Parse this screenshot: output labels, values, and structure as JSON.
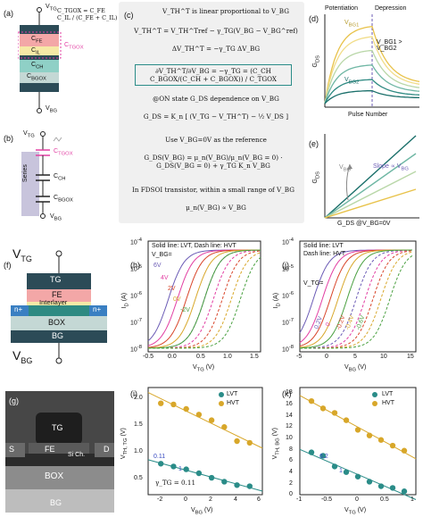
{
  "panels": {
    "a": "(a)",
    "b": "(b)",
    "c": "(c)",
    "d": "(d)",
    "e": "(e)",
    "f": "(f)",
    "g": "(g)",
    "h": "(h)",
    "i": "(i)",
    "j": "(j)",
    "k": "(k)"
  },
  "panel_a": {
    "vtg": "V",
    "vtg_sub": "TG",
    "vbg": "V",
    "vbg_sub": "BG",
    "layers": [
      "C",
      "C",
      "C",
      "C"
    ],
    "layer_subs": [
      "FE",
      "IL",
      "CH",
      "BGOX"
    ],
    "ctgox_label": "C",
    "ctgox_sub": "TGOX",
    "formula": "C_TGOX = C_FE C_IL / (C_FE + C_IL)"
  },
  "panel_b": {
    "vtg": "V",
    "vtg_sub": "TG",
    "vbg": "V",
    "vbg_sub": "BG",
    "series": "Series",
    "caps": [
      "C",
      "C",
      "C"
    ],
    "cap_subs": [
      "TGOX",
      "CH",
      "BGOX"
    ]
  },
  "panel_c": {
    "line1": "V_TH^T is linear proportional to V_BG",
    "eq1": "V_TH^T = V_TH^Tref − γ_TG(V_BG − V_BG^ref)",
    "eq2": "ΔV_TH^T = −γ_TG ΔV_BG",
    "eq3": "∂V_TH^T/∂V_BG = −γ_TG = (C_CH C_BGOX/(C_CH + C_BGOX)) / C_TGOX",
    "line2": "@ON state G_DS dependence on V_BG",
    "eq4": "G_DS = K_n [ (V_TG − V_TH^T) − ½ V_DS ]",
    "line3": "Use V_BG=0V as the reference",
    "eq5": "G_DS(V_BG) = μ_n(V_BG)/μ_n(V_BG = 0) · G_DS(V_BG = 0) + γ_TG K_n V_BG",
    "line4": "In FDSOI transistor, within a small range of V_BG",
    "eq6": "μ_n(V_BG) ∝ V_BG"
  },
  "panel_d": {
    "potentiation": "Potentiation",
    "depression": "Depression",
    "ylabel": "G",
    "ylabel_sub": "DS",
    "xlabel": "Pulse Number",
    "vbg1": "V",
    "vbg1_sub": "BG1",
    "vbg2": "V",
    "vbg2_sub": "BG2",
    "relation": "V_BG1 > V_BG2",
    "colors": [
      "#e8c24a",
      "#f1dd8a",
      "#b9d7a8",
      "#6fb7a4",
      "#2e8a82",
      "#1a6f6a"
    ]
  },
  "panel_e": {
    "ylabel": "G",
    "ylabel_sub": "DS",
    "xlabel": "G_DS @V_BG=0V",
    "vbg": "V",
    "vbg_sub": "BG",
    "slope": "Slope ∝ V",
    "slope_sub": "BG"
  },
  "panel_f": {
    "vtg": "V",
    "vtg_sub": "TG",
    "vbg": "V",
    "vbg_sub": "BG",
    "layers": [
      "TG",
      "FE",
      "Interlayer",
      "n+",
      "n+",
      "BOX",
      "BG"
    ]
  },
  "panel_g": {
    "labels": [
      "TG",
      "FE",
      "Si Ch.",
      "S",
      "D",
      "BOX",
      "BG"
    ]
  },
  "panel_h": {
    "note1": "Solid line: LVT, Dash line: HVT",
    "vbg_label": "V_BG=",
    "curve_labels": [
      "6V",
      "4V",
      "2V",
      "0V",
      "-2V"
    ],
    "xlabel": "V",
    "xlabel_sub": "TG",
    "xunit": " (V)",
    "ylabel": "I",
    "ylabel_sub": "D",
    "yunit": " (A)",
    "xticks": [
      "-0.5",
      "0.0",
      "0.5",
      "1.0",
      "1.5"
    ],
    "yticks": [
      "10",
      "10",
      "10",
      "10",
      "10"
    ],
    "yexps": [
      "-4",
      "-5",
      "-6",
      "-7",
      "-8"
    ]
  },
  "panel_j": {
    "note1": "Solid line: LVT",
    "note2": "Dash line: HVT",
    "vtg_label": "V_TG=",
    "curve_labels": [
      "0.2V",
      "0",
      "-0.2V",
      "-0.4V",
      "-0.6V"
    ],
    "xlabel": "V",
    "xlabel_sub": "BG",
    "xunit": " (V)",
    "ylabel": "I",
    "ylabel_sub": "D",
    "yunit": " (A)",
    "xticks": [
      "-5",
      "0",
      "5",
      "10",
      "15"
    ],
    "yticks": [
      "10",
      "10",
      "10",
      "10",
      "10"
    ],
    "yexps": [
      "-4",
      "-5",
      "-6",
      "-7",
      "-8"
    ]
  },
  "panel_i": {
    "legend": [
      "LVT",
      "HVT"
    ],
    "slope_value": "0.11",
    "slope_one": "1",
    "gamma": "γ_TG = 0.11",
    "xlabel": "V",
    "xlabel_sub": "BG",
    "xunit": " (V)",
    "ylabel": "V",
    "ylabel_sub": "TH, TG",
    "yunit": " (V)",
    "xticks": [
      "-2",
      "0",
      "2",
      "4",
      "6"
    ],
    "yticks": [
      "0.5",
      "1.0",
      "1.5",
      "2.0"
    ],
    "colors": {
      "lvt": "#2a8c88",
      "hvt": "#d8a72a"
    }
  },
  "panel_k": {
    "legend": [
      "LVT",
      "HVT"
    ],
    "slope_value": "6.2",
    "slope_one": "1",
    "xlabel": "V",
    "xlabel_sub": "TG",
    "xunit": " (V)",
    "ylabel": "V",
    "ylabel_sub": "TH, BG",
    "yunit": " (V)",
    "xticks": [
      "-1",
      "-0.5",
      "0",
      "0.5",
      "1"
    ],
    "yticks": [
      "0",
      "2",
      "4",
      "6",
      "8",
      "10",
      "12",
      "14",
      "16",
      "18"
    ]
  },
  "chart_data": [
    {
      "type": "scatter",
      "panel": "i",
      "xlabel": "V_BG (V)",
      "ylabel": "V_TH, TG (V)",
      "xlim": [
        -3,
        6
      ],
      "ylim": [
        0.2,
        2.1
      ],
      "series": [
        {
          "name": "LVT",
          "x": [
            -2,
            -1,
            0,
            1,
            2,
            3,
            4,
            5
          ],
          "y": [
            0.75,
            0.7,
            0.65,
            0.58,
            0.5,
            0.43,
            0.37,
            0.35
          ]
        },
        {
          "name": "HVT",
          "x": [
            -2,
            -1,
            0,
            1,
            2,
            3,
            4,
            5
          ],
          "y": [
            1.82,
            1.8,
            1.72,
            1.62,
            1.52,
            1.4,
            1.15,
            1.12
          ]
        }
      ]
    },
    {
      "type": "scatter",
      "panel": "k",
      "xlabel": "V_TG (V)",
      "ylabel": "V_TH, BG (V)",
      "xlim": [
        -1,
        1
      ],
      "ylim": [
        0,
        19
      ],
      "series": [
        {
          "name": "LVT",
          "x": [
            -0.8,
            -0.6,
            -0.4,
            -0.2,
            0,
            0.2,
            0.4,
            0.6,
            0.8
          ],
          "y": [
            7.5,
            6.9,
            5.0,
            4.0,
            3.2,
            2.3,
            1.5,
            1.2,
            0.6
          ]
        },
        {
          "name": "HVT",
          "x": [
            -0.8,
            -0.6,
            -0.4,
            -0.2,
            0,
            0.2,
            0.4,
            0.6,
            0.8
          ],
          "y": [
            16.6,
            15.3,
            14.5,
            13.2,
            11.5,
            10.5,
            9.7,
            8.7,
            7.8
          ]
        }
      ]
    }
  ]
}
